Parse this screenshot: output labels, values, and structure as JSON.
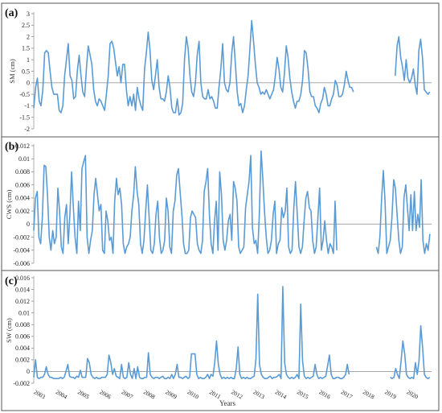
{
  "series_color": "#5b9bd5",
  "x_axis_label": "Years",
  "year_labels": [
    "2003",
    "2004",
    "2005",
    "2006",
    "2007",
    "2008",
    "2009",
    "2010",
    "2011",
    "2012",
    "2013",
    "2014",
    "2015",
    "2016",
    "2017",
    "2018",
    "2019",
    "2020"
  ],
  "chart_data": [
    {
      "type": "line",
      "panel_label": "(a)",
      "ylabel": "SM (cm)",
      "ylim": [
        -2,
        3
      ],
      "yticks": [
        "-2",
        "-1.5",
        "-1",
        "-0.5",
        "0",
        "0.5",
        "1",
        "1.5",
        "2",
        "2.5",
        "3"
      ],
      "x_start": "2003-01",
      "gap_after": 176,
      "values": [
        -1.1,
        -0.2,
        0.2,
        -0.8,
        -1.0,
        -0.3,
        1.3,
        1.4,
        1.3,
        0.5,
        -0.2,
        -0.5,
        -0.5,
        -0.5,
        -1.2,
        -1.3,
        -1.0,
        0.3,
        1.0,
        1.7,
        0.3,
        0.1,
        -0.7,
        -0.6,
        0.5,
        1.2,
        0.3,
        -0.4,
        -0.6,
        0.6,
        1.6,
        1.2,
        0.8,
        -0.3,
        -0.8,
        -1.0,
        -0.7,
        -0.8,
        -1.0,
        -1.2,
        -0.5,
        0.3,
        1.7,
        1.8,
        1.5,
        0.9,
        0.3,
        0.7,
        0.0,
        0.8,
        0.8,
        -0.3,
        -1.0,
        -0.6,
        -1.0,
        -0.5,
        -1.2,
        -0.2,
        -0.7,
        -1.0,
        -1.2,
        0.6,
        1.3,
        2.2,
        1.4,
        0.1,
        -0.3,
        0.3,
        1.0,
        -0.2,
        -0.7,
        -0.7,
        -0.8,
        -0.4,
        0.3,
        -0.2,
        -1.1,
        -1.3,
        -1.3,
        -0.7,
        -1.4,
        -1.3,
        -0.9,
        1.0,
        2.0,
        1.5,
        0.3,
        -0.4,
        -0.6,
        0.0,
        1.2,
        1.8,
        0.0,
        -0.6,
        -0.7,
        -0.7,
        -0.3,
        -0.7,
        -0.6,
        -0.8,
        -1.1,
        -1.1,
        -0.2,
        0.6,
        1.7,
        0.0,
        -0.3,
        -0.4,
        0.0,
        1.3,
        2.0,
        0.8,
        -0.4,
        -1.0,
        -0.9,
        -1.3,
        -1.0,
        -0.3,
        0.3,
        1.5,
        2.7,
        1.8,
        0.8,
        0.0,
        -0.2,
        -0.5,
        -0.4,
        -0.5,
        -0.3,
        -0.5,
        -0.7,
        -0.5,
        -0.3,
        0.3,
        1.1,
        0.6,
        -0.2,
        -0.4,
        0.4,
        1.6,
        1.1,
        0.2,
        -0.4,
        -0.8,
        -1.1,
        -0.8,
        -0.8,
        -0.5,
        0.1,
        1.4,
        1.3,
        0.6,
        -0.4,
        -0.6,
        -0.6,
        -1.0,
        -1.1,
        -1.3,
        -0.9,
        -0.7,
        -0.2,
        -0.5,
        -1.0,
        -1.0,
        -0.7,
        -0.5,
        0.1,
        -0.1,
        -0.6,
        -0.6,
        -0.5,
        -0.1,
        0.5,
        0.1,
        -0.2,
        -0.2,
        -0.4,
        0.3,
        1.6,
        2.0,
        1.1,
        0.7,
        0.1,
        1.0,
        0.2,
        0.0,
        0.2,
        0.6,
        -0.1,
        -0.5,
        1.4,
        1.9,
        1.1,
        -0.3,
        -0.4,
        -0.5,
        -0.4
      ]
    },
    {
      "type": "line",
      "panel_label": "(b)",
      "ylabel": "CWS (cm)",
      "ylim": [
        -0.006,
        0.012
      ],
      "yticks": [
        "-0.006",
        "-0.004",
        "-0.002",
        "0",
        "0.002",
        "0.004",
        "0.006",
        "0.008",
        "0.01",
        "0.012"
      ],
      "x_start": "2003-01",
      "gap_after": 176,
      "values": [
        -0.001,
        0.004,
        0.005,
        -0.002,
        -0.003,
        0.001,
        0.009,
        0.0088,
        0.0045,
        -0.002,
        -0.004,
        -0.001,
        -0.003,
        -0.002,
        0.0055,
        0.002,
        -0.0035,
        -0.0045,
        0.001,
        0.003,
        -0.003,
        0.0015,
        0.008,
        0.0025,
        -0.002,
        -0.0045,
        0.0035,
        -0.001,
        0.0085,
        0.0095,
        0.0105,
        -0.002,
        -0.0045,
        -0.0025,
        -0.001,
        0.0045,
        0.007,
        0.0045,
        0.002,
        0.003,
        -0.004,
        -0.0045,
        0.002,
        0.0005,
        -0.0025,
        -0.002,
        -0.0045,
        0.0035,
        0.007,
        0.0045,
        0.0055,
        0.003,
        -0.003,
        -0.0045,
        -0.0035,
        -0.003,
        -0.002,
        0.002,
        0.0045,
        0.0088,
        0.005,
        0.003,
        -0.003,
        -0.0045,
        -0.0025,
        0.002,
        0.006,
        0.001,
        -0.004,
        -0.0045,
        -0.003,
        0.0015,
        0.0035,
        -0.002,
        -0.0045,
        -0.004,
        -0.0025,
        0.004,
        0.002,
        -0.0035,
        -0.0045,
        0.002,
        0.0035,
        0.0075,
        0.0085,
        0.005,
        0.0015,
        -0.003,
        -0.0045,
        -0.0045,
        -0.004,
        0.001,
        0.002,
        0.0015,
        0.001,
        -0.003,
        -0.004,
        -0.0045,
        -0.0025,
        0.005,
        0.0065,
        0.0085,
        0.0015,
        -0.003,
        -0.0045,
        0.0005,
        0.0035,
        -0.004,
        0.008,
        0.0045,
        -0.0025,
        -0.004,
        -0.0025,
        0.0005,
        0.0015,
        -0.0025,
        0.0065,
        0.0055,
        0.0035,
        -0.0035,
        -0.0045,
        -0.004,
        -0.0035,
        0.0025,
        0.0045,
        0.0065,
        0.0105,
        -0.0005,
        -0.003,
        -0.0025,
        -0.0045,
        0.0015,
        0.0112,
        0.007,
        0.002,
        -0.002,
        -0.0045,
        -0.004,
        -0.0025,
        0.0015,
        0.0035,
        -0.0045,
        -0.003,
        -0.0025,
        0.0025,
        0.001,
        0.002,
        0.0055,
        -0.0035,
        -0.0045,
        -0.004,
        0.0025,
        0.0065,
        0.0015,
        -0.0035,
        -0.0045,
        -0.0035,
        0.0005,
        0.004,
        0.005,
        0.0025,
        0.002,
        -0.0025,
        -0.0045,
        -0.0035,
        0.001,
        0.0055,
        -0.004,
        -0.0025,
        0.0005,
        -0.0025,
        -0.0045,
        -0.003,
        -0.0035,
        -0.0045,
        0.0035,
        -0.004,
        -0.0035,
        -0.0045,
        -0.002,
        0.004,
        0.0082,
        0.0035,
        -0.0045,
        -0.0035,
        -0.0025,
        0.001,
        0.0068,
        0.0055,
        0.0015,
        -0.0025,
        -0.0045,
        -0.0035,
        0.004,
        0.006,
        0.0025,
        -0.001,
        0.0045,
        -0.001,
        0.005,
        -0.001,
        0.0015,
        -0.0005,
        0.0068,
        -0.0025,
        -0.0045,
        -0.003,
        -0.004,
        -0.0015
      ]
    },
    {
      "type": "line",
      "panel_label": "(c)",
      "ylabel": "SW (cm)",
      "ylim": [
        -0.002,
        0.016
      ],
      "yticks": [
        "-0.002",
        "0",
        "0.002",
        "0.004",
        "0.006",
        "0.008",
        "0.01",
        "0.012",
        "0.014",
        "0.016"
      ],
      "x_start": "2003-01",
      "gap_after": 176,
      "values": [
        -0.001,
        0.002,
        -0.001,
        -0.0012,
        -0.001,
        -0.001,
        -0.0005,
        0.0008,
        -0.0005,
        -0.001,
        -0.001,
        -0.0012,
        -0.0012,
        -0.0012,
        -0.0012,
        -0.001,
        -0.0012,
        -0.001,
        0.0,
        0.0012,
        -0.0008,
        -0.001,
        -0.001,
        -0.0012,
        -0.0008,
        -0.001,
        0.0002,
        -0.001,
        -0.001,
        -0.001,
        0.0022,
        0.0015,
        -0.0005,
        -0.001,
        -0.0012,
        -0.001,
        -0.0012,
        -0.0012,
        -0.001,
        -0.001,
        -0.001,
        -0.0005,
        0.0028,
        0.0015,
        -0.0005,
        0.0005,
        -0.0008,
        -0.001,
        -0.0012,
        0.0012,
        -0.001,
        -0.0012,
        -0.001,
        0.0015,
        -0.0005,
        -0.0012,
        0.0005,
        -0.0012,
        0.0008,
        -0.001,
        -0.0012,
        -0.0012,
        -0.001,
        -0.001,
        0.0032,
        -0.0005,
        -0.001,
        -0.0012,
        -0.001,
        -0.001,
        -0.0012,
        -0.001,
        -0.0008,
        -0.0012,
        -0.0012,
        -0.001,
        -0.0012,
        -0.0005,
        -0.0012,
        -0.0005,
        0.0012,
        -0.001,
        -0.001,
        -0.0012,
        -0.001,
        -0.0008,
        -0.0012,
        -0.001,
        0.003,
        0.003,
        0.003,
        -0.0005,
        -0.0012,
        -0.001,
        -0.0012,
        -0.0012,
        -0.001,
        -0.0005,
        -0.0012,
        -0.0005,
        -0.0008,
        0.0015,
        0.0052,
        0.0012,
        -0.0005,
        -0.0012,
        -0.001,
        -0.0012,
        -0.001,
        -0.0012,
        -0.001,
        -0.0012,
        -0.0012,
        0.0005,
        0.0042,
        -0.0005,
        -0.0012,
        -0.001,
        -0.0012,
        -0.001,
        -0.0012,
        -0.0012,
        -0.001,
        -0.0008,
        0.0022,
        0.0132,
        0.0012,
        -0.0005,
        -0.001,
        -0.0012,
        -0.0012,
        -0.001,
        -0.0008,
        -0.0012,
        -0.001,
        -0.001,
        -0.0008,
        -0.0005,
        -0.0012,
        0.0145,
        0.0015,
        -0.0005,
        -0.001,
        -0.0012,
        -0.001,
        -0.0012,
        -0.001,
        -0.0005,
        -0.0012,
        0.0115,
        0.0018,
        -0.0008,
        -0.0012,
        -0.001,
        -0.0012,
        -0.001,
        -0.0008,
        0.0012,
        -0.0005,
        -0.0012,
        -0.001,
        -0.0012,
        -0.001,
        -0.0008,
        0.001,
        0.0028,
        -0.0005,
        -0.0012,
        -0.0012,
        -0.001,
        -0.001,
        -0.0012,
        -0.0012,
        -0.001,
        -0.0005,
        0.0012,
        -0.0005,
        -0.001,
        -0.0012,
        -0.001,
        0.0005,
        -0.0005,
        -0.0012,
        0.0018,
        0.0052,
        0.003,
        -0.0005,
        -0.001,
        -0.0012,
        -0.001,
        -0.0012,
        0.0015,
        -0.0005,
        0.0018,
        0.0078,
        0.004,
        -0.0005,
        -0.001,
        -0.0012,
        -0.001
      ]
    }
  ]
}
